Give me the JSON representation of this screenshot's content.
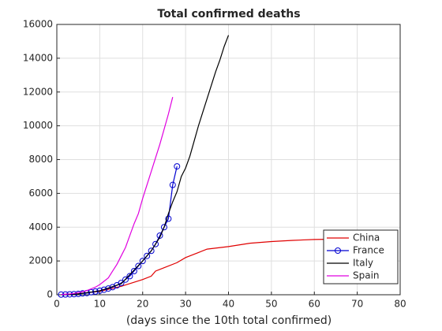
{
  "chart_data": {
    "type": "line",
    "title": "Total confirmed deaths",
    "xlabel": "(days since the 10th total confirmed)",
    "xlim": [
      0,
      80
    ],
    "xticks": [
      0,
      10,
      20,
      30,
      40,
      50,
      60,
      70,
      80
    ],
    "ylim": [
      0,
      16000
    ],
    "yticks": [
      0,
      2000,
      4000,
      6000,
      8000,
      10000,
      12000,
      14000,
      16000
    ],
    "grid": true,
    "legend": "southeast",
    "series": [
      {
        "name": "China",
        "color": "#e00000",
        "marker": false,
        "x": [
          1,
          5,
          10,
          15,
          20,
          22,
          23,
          25,
          28,
          30,
          33,
          35,
          40,
          45,
          50,
          55,
          60,
          65,
          71
        ],
        "values": [
          10,
          60,
          200,
          500,
          900,
          1100,
          1400,
          1600,
          1900,
          2200,
          2500,
          2700,
          2850,
          3050,
          3150,
          3220,
          3270,
          3290,
          3300
        ]
      },
      {
        "name": "France",
        "color": "#0000d0",
        "marker": true,
        "x": [
          1,
          2,
          3,
          4,
          5,
          6,
          7,
          8,
          9,
          10,
          11,
          12,
          13,
          14,
          15,
          16,
          17,
          18,
          19,
          20,
          21,
          22,
          23,
          24,
          25,
          26,
          27,
          28
        ],
        "values": [
          10,
          15,
          25,
          35,
          50,
          80,
          100,
          150,
          190,
          240,
          300,
          370,
          450,
          560,
          700,
          900,
          1100,
          1400,
          1700,
          2000,
          2300,
          2600,
          3000,
          3500,
          4000,
          4500,
          6500,
          7600
        ]
      },
      {
        "name": "Italy",
        "color": "#000000",
        "marker": false,
        "x": [
          1,
          5,
          10,
          15,
          20,
          22,
          24,
          25,
          26,
          27,
          28,
          29,
          30,
          31,
          32,
          33,
          34,
          35,
          36,
          37,
          38,
          39,
          40
        ],
        "values": [
          10,
          50,
          230,
          650,
          2000,
          2600,
          3400,
          4000,
          4800,
          5500,
          6100,
          7000,
          7500,
          8200,
          9100,
          10000,
          10800,
          11600,
          12400,
          13200,
          13900,
          14700,
          15360
        ]
      },
      {
        "name": "Spain",
        "color": "#e000e0",
        "marker": false,
        "x": [
          1,
          2,
          3,
          4,
          5,
          6,
          7,
          8,
          9,
          10,
          11,
          12,
          13,
          14,
          15,
          16,
          17,
          18,
          19,
          20,
          21,
          22,
          23,
          24,
          25,
          26,
          27
        ],
        "values": [
          15,
          30,
          50,
          80,
          130,
          180,
          250,
          350,
          450,
          600,
          800,
          1000,
          1400,
          1800,
          2300,
          2800,
          3500,
          4200,
          4800,
          5700,
          6500,
          7300,
          8100,
          8900,
          9800,
          10700,
          11700
        ]
      }
    ]
  }
}
